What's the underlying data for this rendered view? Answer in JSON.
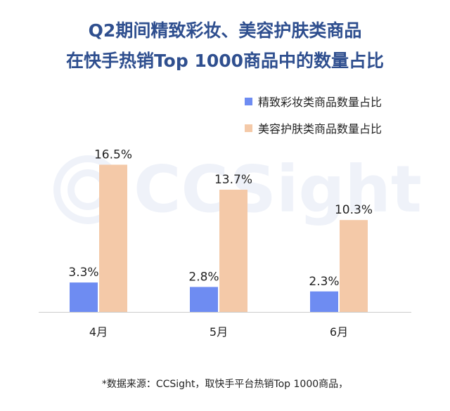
{
  "title_line1": "Q2期间精致彩妆、美容护肤类商品",
  "title_line2": "在快手热销Top 1000商品中的数量占比",
  "watermark_text": "CCSight",
  "source_note": "*数据来源：CCSight，取快手平台热销Top 1000商品，",
  "colors": {
    "title": "#2f4f8f",
    "series1": "#6e8cf2",
    "series2": "#f4c9a8",
    "axis": "#cccccc"
  },
  "chart_data": {
    "type": "bar",
    "categories": [
      "4月",
      "5月",
      "6月"
    ],
    "series": [
      {
        "name": "精致彩妆类商品数量占比",
        "values": [
          3.3,
          2.8,
          2.3
        ],
        "labels": [
          "3.3%",
          "2.8%",
          "2.3%"
        ]
      },
      {
        "name": "美容护肤类商品数量占比",
        "values": [
          16.5,
          13.7,
          10.3
        ],
        "labels": [
          "16.5%",
          "13.7%",
          "10.3%"
        ]
      }
    ],
    "legend_position": "top-right",
    "grid": false
  }
}
